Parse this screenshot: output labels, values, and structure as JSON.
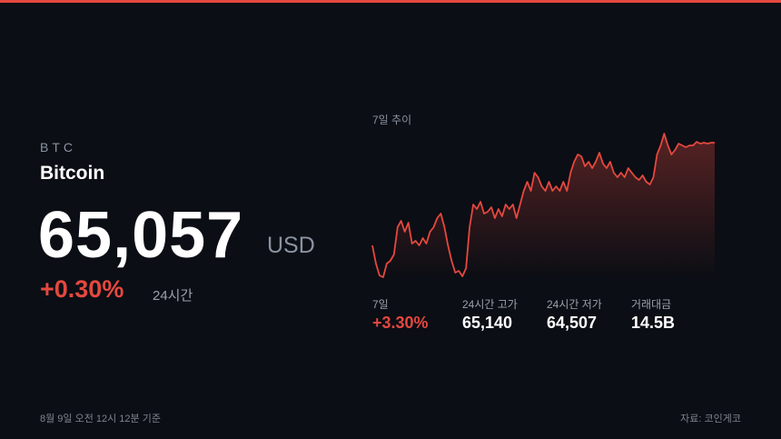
{
  "header": {
    "symbol": "BTC",
    "name": "Bitcoin"
  },
  "price": {
    "value": "65,057",
    "unit": "USD",
    "change": "+0.30%",
    "period": "24시간"
  },
  "chart": {
    "type": "line",
    "title": "7일 추이",
    "color": "#e5483f",
    "values": [
      62978,
      62610,
      62371,
      62334,
      62610,
      62665,
      62794,
      63346,
      63475,
      63254,
      63438,
      63015,
      63070,
      62978,
      63125,
      63015,
      63254,
      63346,
      63530,
      63622,
      63346,
      62978,
      62665,
      62426,
      62463,
      62352,
      62518,
      63346,
      63806,
      63714,
      63861,
      63622,
      63659,
      63751,
      63530,
      63714,
      63567,
      63806,
      63714,
      63806,
      63530,
      63806,
      64082,
      64266,
      64082,
      64450,
      64358,
      64174,
      64082,
      64266,
      64082,
      64174,
      64082,
      64266,
      64082,
      64450,
      64671,
      64818,
      64781,
      64579,
      64671,
      64542,
      64671,
      64855,
      64634,
      64542,
      64671,
      64450,
      64358,
      64450,
      64358,
      64542,
      64450,
      64358,
      64303,
      64395,
      64266,
      64211,
      64358,
      64818,
      65002,
      65241,
      65002,
      64818,
      64910,
      65039,
      65002,
      64965,
      65002,
      65002,
      65076,
      65039,
      65057,
      65039,
      65057,
      65057
    ]
  },
  "stats": [
    {
      "label": "7일",
      "value": "+3.30%"
    },
    {
      "label": "24시간 고가",
      "value": "65,140"
    },
    {
      "label": "24시간 저가",
      "value": "64,507"
    },
    {
      "label": "거래대금",
      "value": "14.5B"
    }
  ],
  "footer": {
    "timestamp": "8월 9일 오전 12시 12분 기준",
    "source": "자료: 코인게코"
  }
}
